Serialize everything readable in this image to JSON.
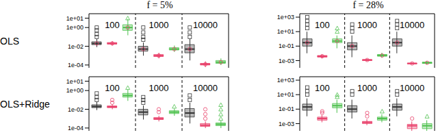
{
  "chart_data": [
    {
      "type": "box",
      "title": "f = 5%",
      "ylabel": "OLS",
      "log": "y",
      "ylim": [
        5e-05,
        30
      ],
      "yticks": [
        {
          "value": 10,
          "label": "1e+01"
        },
        {
          "value": 1,
          "label": "1e+00"
        },
        {
          "value": 0.01,
          "label": "1e-02"
        },
        {
          "value": 0.0001,
          "label": "1e-04"
        }
      ],
      "categories": [
        "100",
        "1000",
        "10000"
      ],
      "series": [
        {
          "color": "#333333",
          "marker": "square",
          "values": [
            {
              "min": 0.008,
              "q1": 0.015,
              "median": 0.02,
              "q3": 0.03,
              "max": 0.06,
              "outliers": [
                0.1,
                0.2,
                0.5,
                1
              ]
            },
            {
              "min": 0.001,
              "q1": 0.003,
              "median": 0.005,
              "q3": 0.01,
              "max": 0.025,
              "outliers": [
                0.05,
                0.1,
                0.3,
                1
              ]
            },
            {
              "min": 0.0003,
              "q1": 0.002,
              "median": 0.005,
              "q3": 0.015,
              "max": 0.06,
              "outliers": [
                0.1,
                0.3,
                1
              ]
            }
          ]
        },
        {
          "color": "#e8406a",
          "marker": "circle",
          "values": [
            {
              "min": 0.012,
              "q1": 0.017,
              "median": 0.02,
              "q3": 0.025,
              "max": 0.035,
              "outliers": []
            },
            {
              "min": 0.0005,
              "q1": 0.0008,
              "median": 0.001,
              "q3": 0.0013,
              "max": 0.002,
              "outliers": []
            },
            {
              "min": 6e-05,
              "q1": 0.0001,
              "median": 0.00012,
              "q3": 0.00015,
              "max": 0.00025,
              "outliers": []
            }
          ]
        },
        {
          "color": "#4cc04c",
          "marker": "triangle",
          "values": [
            {
              "min": 0.15,
              "q1": 0.5,
              "median": 1,
              "q3": 2,
              "max": 8,
              "outliers": [
                10
              ]
            },
            {
              "min": 0.0025,
              "q1": 0.004,
              "median": 0.005,
              "q3": 0.007,
              "max": 0.012,
              "outliers": []
            },
            {
              "min": 0.0001,
              "q1": 0.00015,
              "median": 0.0002,
              "q3": 0.0003,
              "max": 0.0005,
              "outliers": []
            }
          ]
        }
      ]
    },
    {
      "type": "box",
      "title": "f = 28%",
      "log": "y",
      "ylim": [
        0.0001,
        3000
      ],
      "yticks": [
        {
          "value": 1000,
          "label": "1e+03"
        },
        {
          "value": 10,
          "label": "1e+01"
        },
        {
          "value": 0.1,
          "label": "1e-01"
        },
        {
          "value": 0.001,
          "label": "1e-03"
        }
      ],
      "categories": [
        "100",
        "1000",
        "10000"
      ],
      "series": [
        {
          "color": "#333333",
          "marker": "square",
          "values": [
            {
              "min": 0.01,
              "q1": 0.1,
              "median": 0.3,
              "q3": 1,
              "max": 10,
              "outliers": [
                30,
                100,
                300,
                1000
              ]
            },
            {
              "min": 0.003,
              "q1": 0.03,
              "median": 0.1,
              "q3": 0.3,
              "max": 3,
              "outliers": [
                10,
                30,
                100
              ]
            },
            {
              "min": 0.01,
              "q1": 0.1,
              "median": 0.3,
              "q3": 1,
              "max": 10,
              "outliers": [
                30,
                100,
                300
              ]
            }
          ]
        },
        {
          "color": "#e8406a",
          "marker": "circle",
          "values": [
            {
              "min": 0.002,
              "q1": 0.003,
              "median": 0.004,
              "q3": 0.005,
              "max": 0.007,
              "outliers": []
            },
            {
              "min": 0.0008,
              "q1": 0.001,
              "median": 0.0012,
              "q3": 0.0014,
              "max": 0.0018,
              "outliers": []
            },
            {
              "min": 0.0003,
              "q1": 0.00035,
              "median": 0.0004,
              "q3": 0.00045,
              "max": 0.0005,
              "outliers": []
            }
          ]
        },
        {
          "color": "#4cc04c",
          "marker": "triangle",
          "values": [
            {
              "min": 0.05,
              "q1": 0.3,
              "median": 0.5,
              "q3": 1,
              "max": 3,
              "outliers": [
                10,
                30
              ]
            },
            {
              "min": 0.0025,
              "q1": 0.004,
              "median": 0.005,
              "q3": 0.007,
              "max": 0.012,
              "outliers": []
            },
            {
              "min": 0.0003,
              "q1": 0.0004,
              "median": 0.0005,
              "q3": 0.0006,
              "max": 0.0008,
              "outliers": []
            }
          ]
        }
      ]
    },
    {
      "type": "box",
      "ylabel": "OLS+Ridge",
      "log": "y",
      "ylim": [
        5e-05,
        30
      ],
      "yticks": [
        {
          "value": 10,
          "label": "1e+01"
        },
        {
          "value": 1,
          "label": "1e+00"
        },
        {
          "value": 0.01,
          "label": "1e-02"
        },
        {
          "value": 0.0001,
          "label": "1e-04"
        }
      ],
      "categories": [
        "100",
        "1000",
        "10000"
      ],
      "series": [
        {
          "color": "#333333",
          "marker": "square",
          "values": [
            {
              "min": 0.008,
              "q1": 0.015,
              "median": 0.02,
              "q3": 0.03,
              "max": 0.06,
              "outliers": [
                0.1,
                0.2,
                0.5
              ]
            },
            {
              "min": 0.0008,
              "q1": 0.0025,
              "median": 0.005,
              "q3": 0.01,
              "max": 0.025,
              "outliers": [
                0.05,
                0.1,
                0.2
              ]
            },
            {
              "min": 0.0003,
              "q1": 0.0015,
              "median": 0.004,
              "q3": 0.012,
              "max": 0.05,
              "outliers": [
                0.1,
                0.3
              ]
            }
          ]
        },
        {
          "color": "#e8406a",
          "marker": "circle",
          "values": [
            {
              "min": 0.01,
              "q1": 0.015,
              "median": 0.018,
              "q3": 0.023,
              "max": 0.03,
              "outliers": [
                0.05,
                0.1
              ]
            },
            {
              "min": 0.0005,
              "q1": 0.0008,
              "median": 0.001,
              "q3": 0.0013,
              "max": 0.002,
              "outliers": [
                0.005,
                0.01
              ]
            },
            {
              "min": 0.0001,
              "q1": 0.00015,
              "median": 0.0002,
              "q3": 0.0003,
              "max": 0.0005,
              "outliers": [
                0.001,
                0.003,
                0.01
              ]
            }
          ]
        },
        {
          "color": "#4cc04c",
          "marker": "triangle",
          "values": [
            {
              "min": 0.08,
              "q1": 0.2,
              "median": 0.3,
              "q3": 0.5,
              "max": 1.2,
              "outliers": [
                2
              ]
            },
            {
              "min": 0.002,
              "q1": 0.0035,
              "median": 0.005,
              "q3": 0.007,
              "max": 0.012,
              "outliers": [
                0.02
              ]
            },
            {
              "min": 0.0001,
              "q1": 0.00018,
              "median": 0.00025,
              "q3": 0.00035,
              "max": 0.0006,
              "outliers": [
                0.001,
                0.003,
                0.01,
                0.03
              ]
            }
          ]
        }
      ]
    },
    {
      "type": "box",
      "log": "y",
      "ylim": [
        0.0001,
        3000
      ],
      "yticks": [
        {
          "value": 1000,
          "label": "1e+03"
        },
        {
          "value": 10,
          "label": "1e+01"
        },
        {
          "value": 0.1,
          "label": "1e-01"
        },
        {
          "value": 0.001,
          "label": "1e-03"
        }
      ],
      "categories": [
        "100",
        "1000",
        "10000"
      ],
      "series": [
        {
          "color": "#333333",
          "marker": "square",
          "values": [
            {
              "min": 0.01,
              "q1": 0.07,
              "median": 0.2,
              "q3": 0.5,
              "max": 3,
              "outliers": [
                10,
                30,
                100
              ]
            },
            {
              "min": 0.005,
              "q1": 0.04,
              "median": 0.1,
              "q3": 0.3,
              "max": 2,
              "outliers": [
                10,
                30
              ]
            },
            {
              "min": 0.01,
              "q1": 0.07,
              "median": 0.2,
              "q3": 0.5,
              "max": 3,
              "outliers": [
                10,
                30
              ]
            }
          ]
        },
        {
          "color": "#e8406a",
          "marker": "circle",
          "values": [
            {
              "min": 0.0015,
              "q1": 0.003,
              "median": 0.005,
              "q3": 0.008,
              "max": 0.015,
              "outliers": [
                0.03,
                0.05
              ]
            },
            {
              "min": 0.0006,
              "q1": 0.001,
              "median": 0.0015,
              "q3": 0.002,
              "max": 0.004,
              "outliers": [
                0.01,
                0.03
              ]
            },
            {
              "min": 0.0001,
              "q1": 0.0002,
              "median": 0.0005,
              "q3": 0.0008,
              "max": 0.002,
              "outliers": [
                0.005
              ]
            }
          ]
        },
        {
          "color": "#4cc04c",
          "marker": "triangle",
          "values": [
            {
              "min": 0.03,
              "q1": 0.15,
              "median": 0.3,
              "q3": 0.6,
              "max": 2,
              "outliers": [
                5,
                10
              ]
            },
            {
              "min": 0.0015,
              "q1": 0.003,
              "median": 0.005,
              "q3": 0.008,
              "max": 0.02,
              "outliers": [
                0.05
              ]
            },
            {
              "min": 0.0001,
              "q1": 0.0002,
              "median": 0.0005,
              "q3": 0.001,
              "max": 0.003,
              "outliers": [
                0.01
              ]
            }
          ]
        }
      ]
    }
  ]
}
